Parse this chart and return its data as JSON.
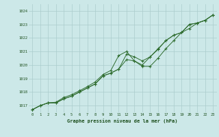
{
  "bg_color": "#cce8e8",
  "grid_color": "#aacccc",
  "line_color": "#2d6b2d",
  "text_color": "#1a4d1a",
  "xlabel": "Graphe pression niveau de la mer (hPa)",
  "x_ticks": [
    0,
    1,
    2,
    3,
    4,
    5,
    6,
    7,
    8,
    9,
    10,
    11,
    12,
    13,
    14,
    15,
    16,
    17,
    18,
    19,
    20,
    21,
    22,
    23
  ],
  "ylim": [
    1016.5,
    1024.5
  ],
  "yticks": [
    1017,
    1018,
    1019,
    1020,
    1021,
    1022,
    1023,
    1024
  ],
  "line1": [
    1016.7,
    1017.0,
    1017.2,
    1017.2,
    1017.5,
    1017.7,
    1018.0,
    1018.3,
    1018.6,
    1019.2,
    1019.4,
    1019.7,
    1020.4,
    1020.3,
    1019.9,
    1019.9,
    1020.5,
    1021.2,
    1021.8,
    1022.4,
    1023.0,
    1023.1,
    1023.3,
    1023.7
  ],
  "line2": [
    1016.7,
    1017.0,
    1017.2,
    1017.2,
    1017.5,
    1017.7,
    1018.0,
    1018.3,
    1018.6,
    1019.2,
    1019.4,
    1019.7,
    1020.8,
    1020.6,
    1020.3,
    1020.6,
    1021.2,
    1021.8,
    1022.2,
    1022.4,
    1023.0,
    1023.1,
    1023.3,
    1023.7
  ],
  "line3": [
    1016.7,
    1017.0,
    1017.2,
    1017.25,
    1017.6,
    1017.8,
    1018.1,
    1018.4,
    1018.75,
    1019.3,
    1019.6,
    1020.7,
    1021.0,
    1020.3,
    1020.0,
    1020.6,
    1021.15,
    1021.8,
    1022.2,
    1022.4,
    1022.7,
    1023.1,
    1023.3,
    1023.7
  ]
}
